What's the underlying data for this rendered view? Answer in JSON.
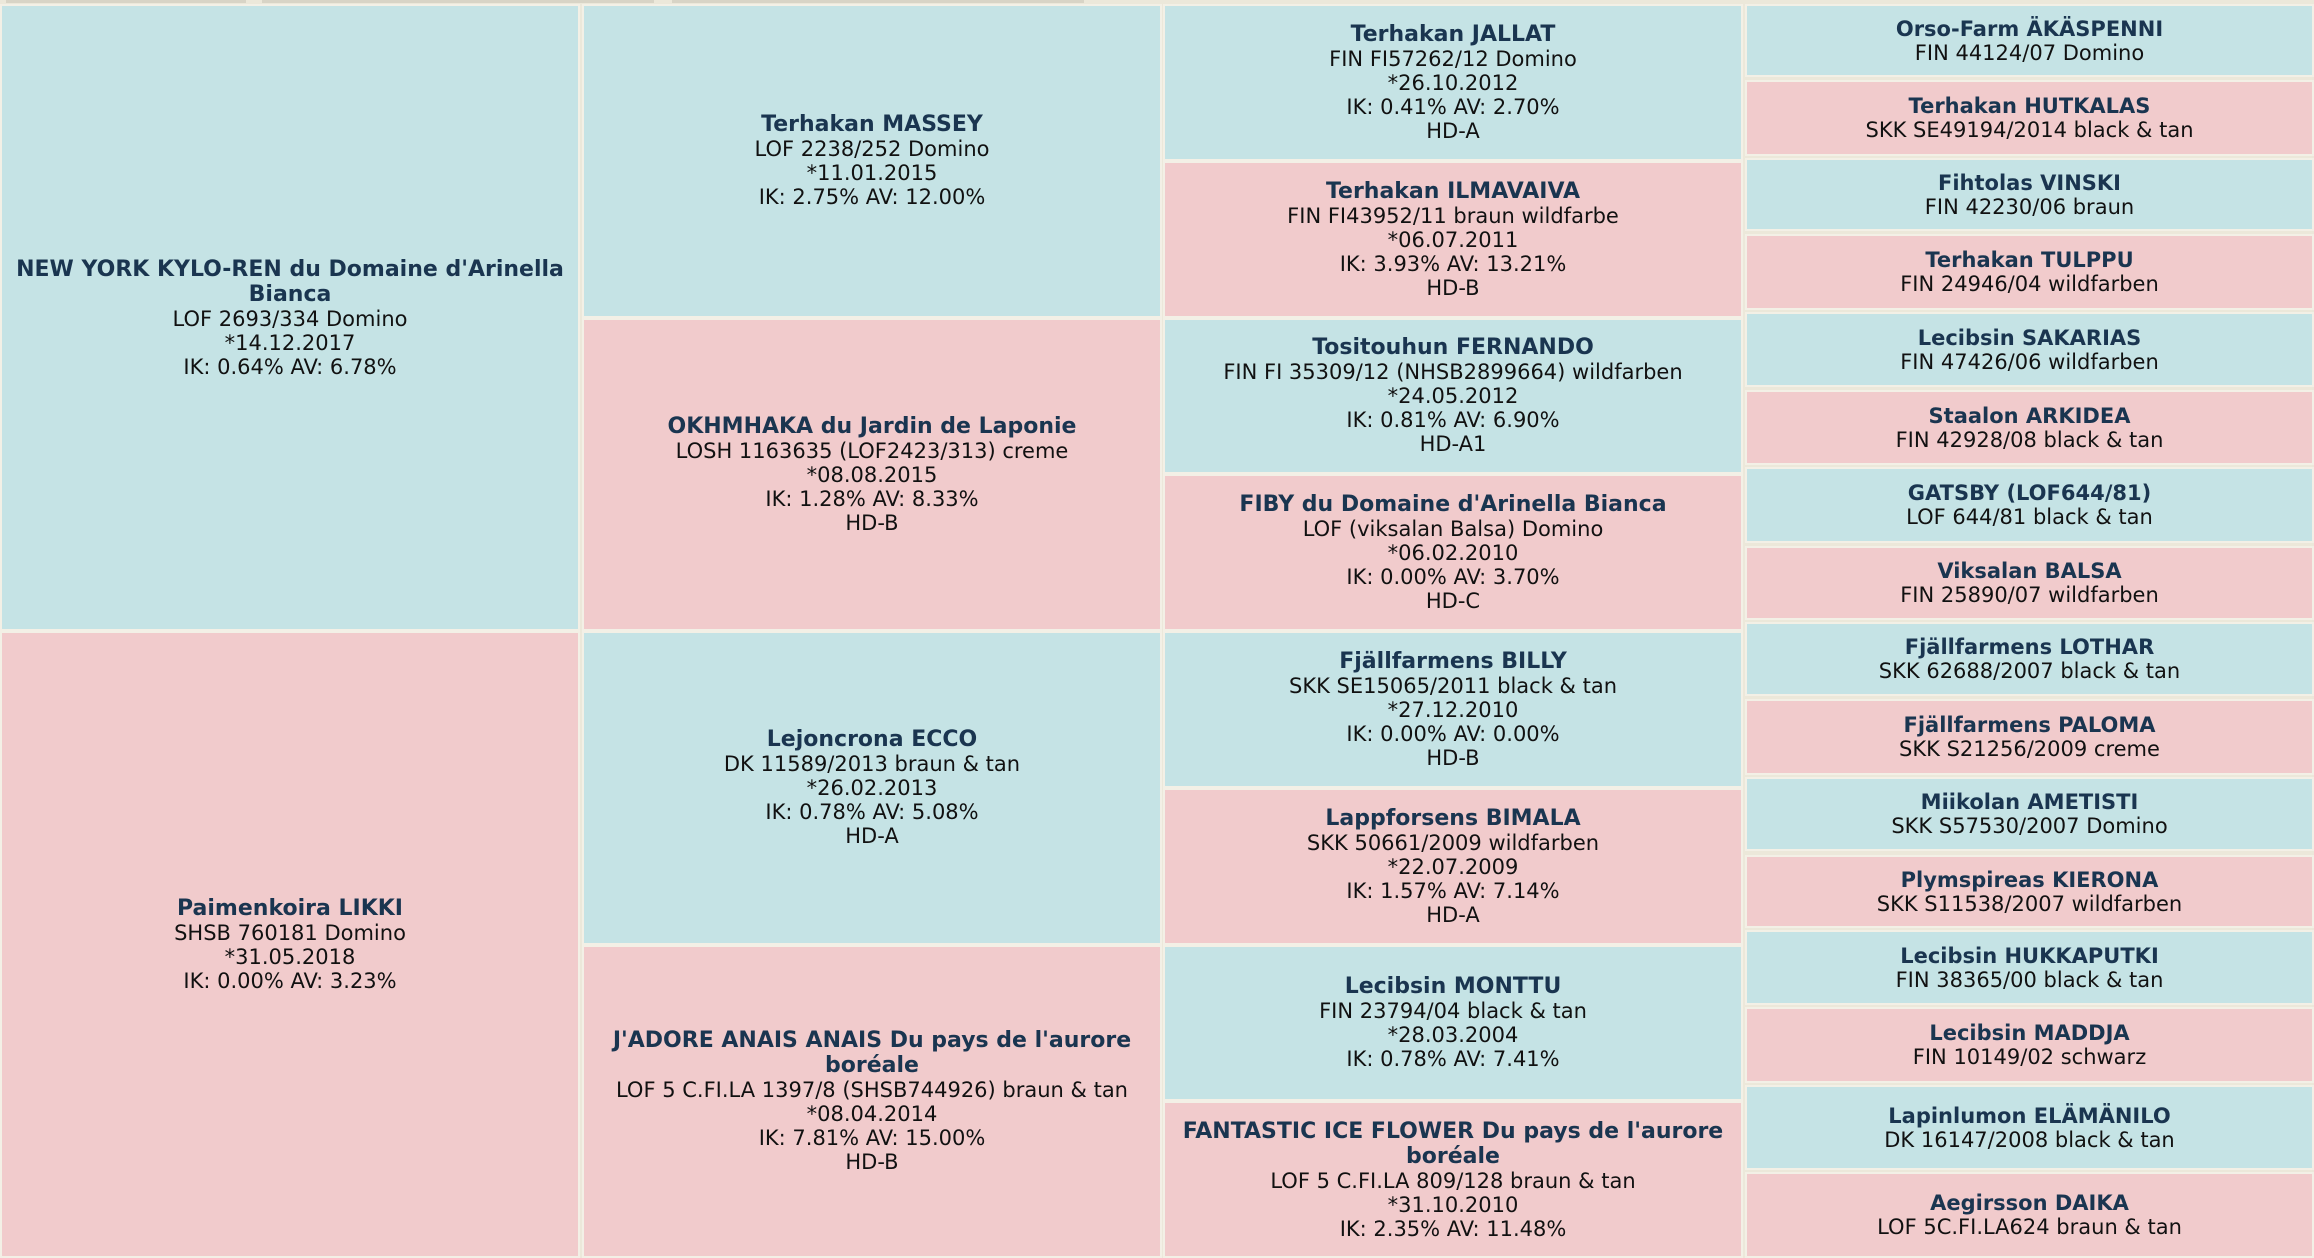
{
  "generations": [
    [
      {
        "name": "NEW YORK KYLO-REN du Domaine d'Arinella Bianca",
        "details": [
          "LOF 2693/334 Domino",
          "*14.12.2017",
          "IK: 0.64% AV: 6.78%"
        ],
        "sex": "male"
      },
      {
        "name": "Paimenkoira LIKKI",
        "details": [
          "SHSB 760181 Domino",
          "*31.05.2018",
          "IK: 0.00% AV: 3.23%"
        ],
        "sex": "female"
      }
    ],
    [
      {
        "name": "Terhakan MASSEY",
        "details": [
          "LOF 2238/252 Domino",
          "*11.01.2015",
          "IK: 2.75% AV: 12.00%"
        ],
        "sex": "male"
      },
      {
        "name": "OKHMHAKA du Jardin de Laponie",
        "details": [
          "LOSH 1163635 (LOF2423/313) creme",
          "*08.08.2015",
          "IK: 1.28% AV: 8.33%",
          "HD-B"
        ],
        "sex": "female"
      },
      {
        "name": "Lejoncrona ECCO",
        "details": [
          "DK 11589/2013 braun & tan",
          "*26.02.2013",
          "IK: 0.78% AV: 5.08%",
          "HD-A"
        ],
        "sex": "male"
      },
      {
        "name": "J'ADORE ANAIS ANAIS Du pays de l'aurore boréale",
        "details": [
          "LOF 5 C.FI.LA 1397/8 (SHSB744926) braun & tan",
          "*08.04.2014",
          "IK: 7.81% AV: 15.00%",
          "HD-B"
        ],
        "sex": "female"
      }
    ],
    [
      {
        "name": "Terhakan JALLAT",
        "details": [
          "FIN FI57262/12 Domino",
          "*26.10.2012",
          "IK: 0.41% AV: 2.70%",
          "HD-A"
        ],
        "sex": "male"
      },
      {
        "name": "Terhakan ILMAVAIVA",
        "details": [
          "FIN FI43952/11 braun wildfarbe",
          "*06.07.2011",
          "IK: 3.93% AV: 13.21%",
          "HD-B"
        ],
        "sex": "female"
      },
      {
        "name": "Tositouhun FERNANDO",
        "details": [
          "FIN FI 35309/12 (NHSB2899664) wildfarben",
          "*24.05.2012",
          "IK: 0.81% AV: 6.90%",
          "HD-A1"
        ],
        "sex": "male"
      },
      {
        "name": "FIBY du Domaine d'Arinella Bianca",
        "details": [
          "LOF (viksalan Balsa) Domino",
          "*06.02.2010",
          "IK: 0.00% AV: 3.70%",
          "HD-C"
        ],
        "sex": "female"
      },
      {
        "name": "Fjällfarmens BILLY",
        "details": [
          "SKK SE15065/2011 black & tan",
          "*27.12.2010",
          "IK: 0.00% AV: 0.00%",
          "HD-B"
        ],
        "sex": "male"
      },
      {
        "name": "Lappforsens BIMALA",
        "details": [
          "SKK 50661/2009 wildfarben",
          "*22.07.2009",
          "IK: 1.57% AV: 7.14%",
          "HD-A"
        ],
        "sex": "female"
      },
      {
        "name": "Lecibsin MONTTU",
        "details": [
          "FIN 23794/04 black & tan",
          "*28.03.2004",
          "IK: 0.78% AV: 7.41%"
        ],
        "sex": "male"
      },
      {
        "name": "FANTASTIC ICE FLOWER Du pays de l'aurore boréale",
        "details": [
          "LOF 5 C.FI.LA 809/128 braun & tan",
          "*31.10.2010",
          "IK: 2.35% AV: 11.48%"
        ],
        "sex": "female"
      }
    ],
    [
      {
        "name": "Orso-Farm ÄKÄSPENNI",
        "details": [
          "FIN 44124/07 Domino"
        ],
        "sex": "male"
      },
      {
        "name": "Terhakan HUTKALAS",
        "details": [
          "SKK SE49194/2014 black & tan"
        ],
        "sex": "female"
      },
      {
        "name": "Fihtolas VINSKI",
        "details": [
          "FIN 42230/06 braun"
        ],
        "sex": "male"
      },
      {
        "name": "Terhakan TULPPU",
        "details": [
          "FIN 24946/04 wildfarben"
        ],
        "sex": "female"
      },
      {
        "name": "Lecibsin SAKARIAS",
        "details": [
          "FIN 47426/06 wildfarben"
        ],
        "sex": "male"
      },
      {
        "name": "Staalon ARKIDEA",
        "details": [
          "FIN 42928/08 black & tan"
        ],
        "sex": "female"
      },
      {
        "name": "GATSBY (LOF644/81)",
        "details": [
          "LOF 644/81 black & tan"
        ],
        "sex": "male"
      },
      {
        "name": "Viksalan BALSA",
        "details": [
          "FIN 25890/07 wildfarben"
        ],
        "sex": "female"
      },
      {
        "name": "Fjällfarmens LOTHAR",
        "details": [
          "SKK 62688/2007 black & tan"
        ],
        "sex": "male"
      },
      {
        "name": "Fjällfarmens PALOMA",
        "details": [
          "SKK S21256/2009 creme"
        ],
        "sex": "female"
      },
      {
        "name": "Miikolan AMETISTI",
        "details": [
          "SKK S57530/2007 Domino"
        ],
        "sex": "male"
      },
      {
        "name": "Plymspireas KIERONA",
        "details": [
          "SKK S11538/2007 wildfarben"
        ],
        "sex": "female"
      },
      {
        "name": "Lecibsin HUKKAPUTKI",
        "details": [
          "FIN 38365/00 black & tan"
        ],
        "sex": "male"
      },
      {
        "name": "Lecibsin MADDJA",
        "details": [
          "FIN 10149/02 schwarz"
        ],
        "sex": "female"
      },
      {
        "name": "Lapinlumon ELÄMÄNILO",
        "details": [
          "DK 16147/2008 black & tan"
        ],
        "sex": "male"
      },
      {
        "name": "Aegirsson DAIKA",
        "details": [
          "LOF 5C.FI.LA624 braun & tan"
        ],
        "sex": "female"
      }
    ]
  ]
}
